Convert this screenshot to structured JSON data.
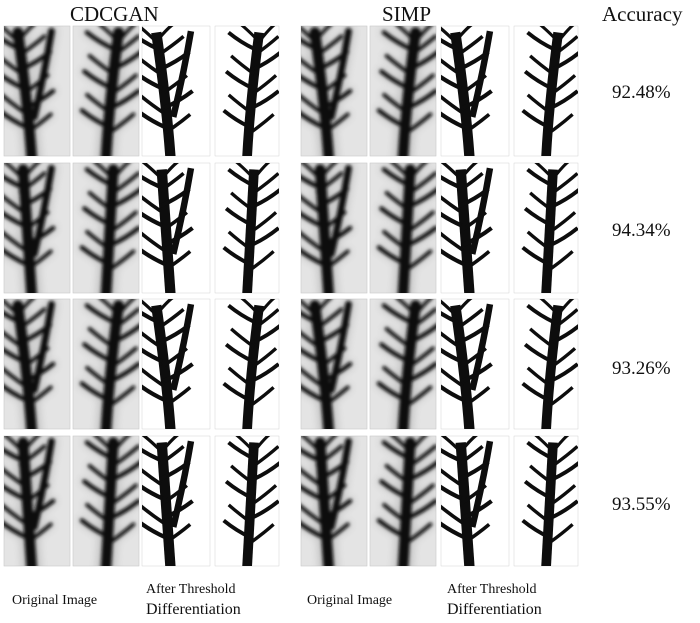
{
  "headers": {
    "cdcgan": "CDCGAN",
    "simp": "SIMP",
    "accuracy": "Accuracy"
  },
  "rows": [
    {
      "accuracy": "92.48%"
    },
    {
      "accuracy": "94.34%"
    },
    {
      "accuracy": "93.26%"
    },
    {
      "accuracy": "93.55%"
    }
  ],
  "captions": {
    "original_image": "Original Image",
    "after_threshold": "After Threshold",
    "differentiation": "Differentiation"
  },
  "colors": {
    "structure": "#0d0d0d",
    "background_gray": "#e4e4e4",
    "panel_border": "#c8c8c8"
  }
}
